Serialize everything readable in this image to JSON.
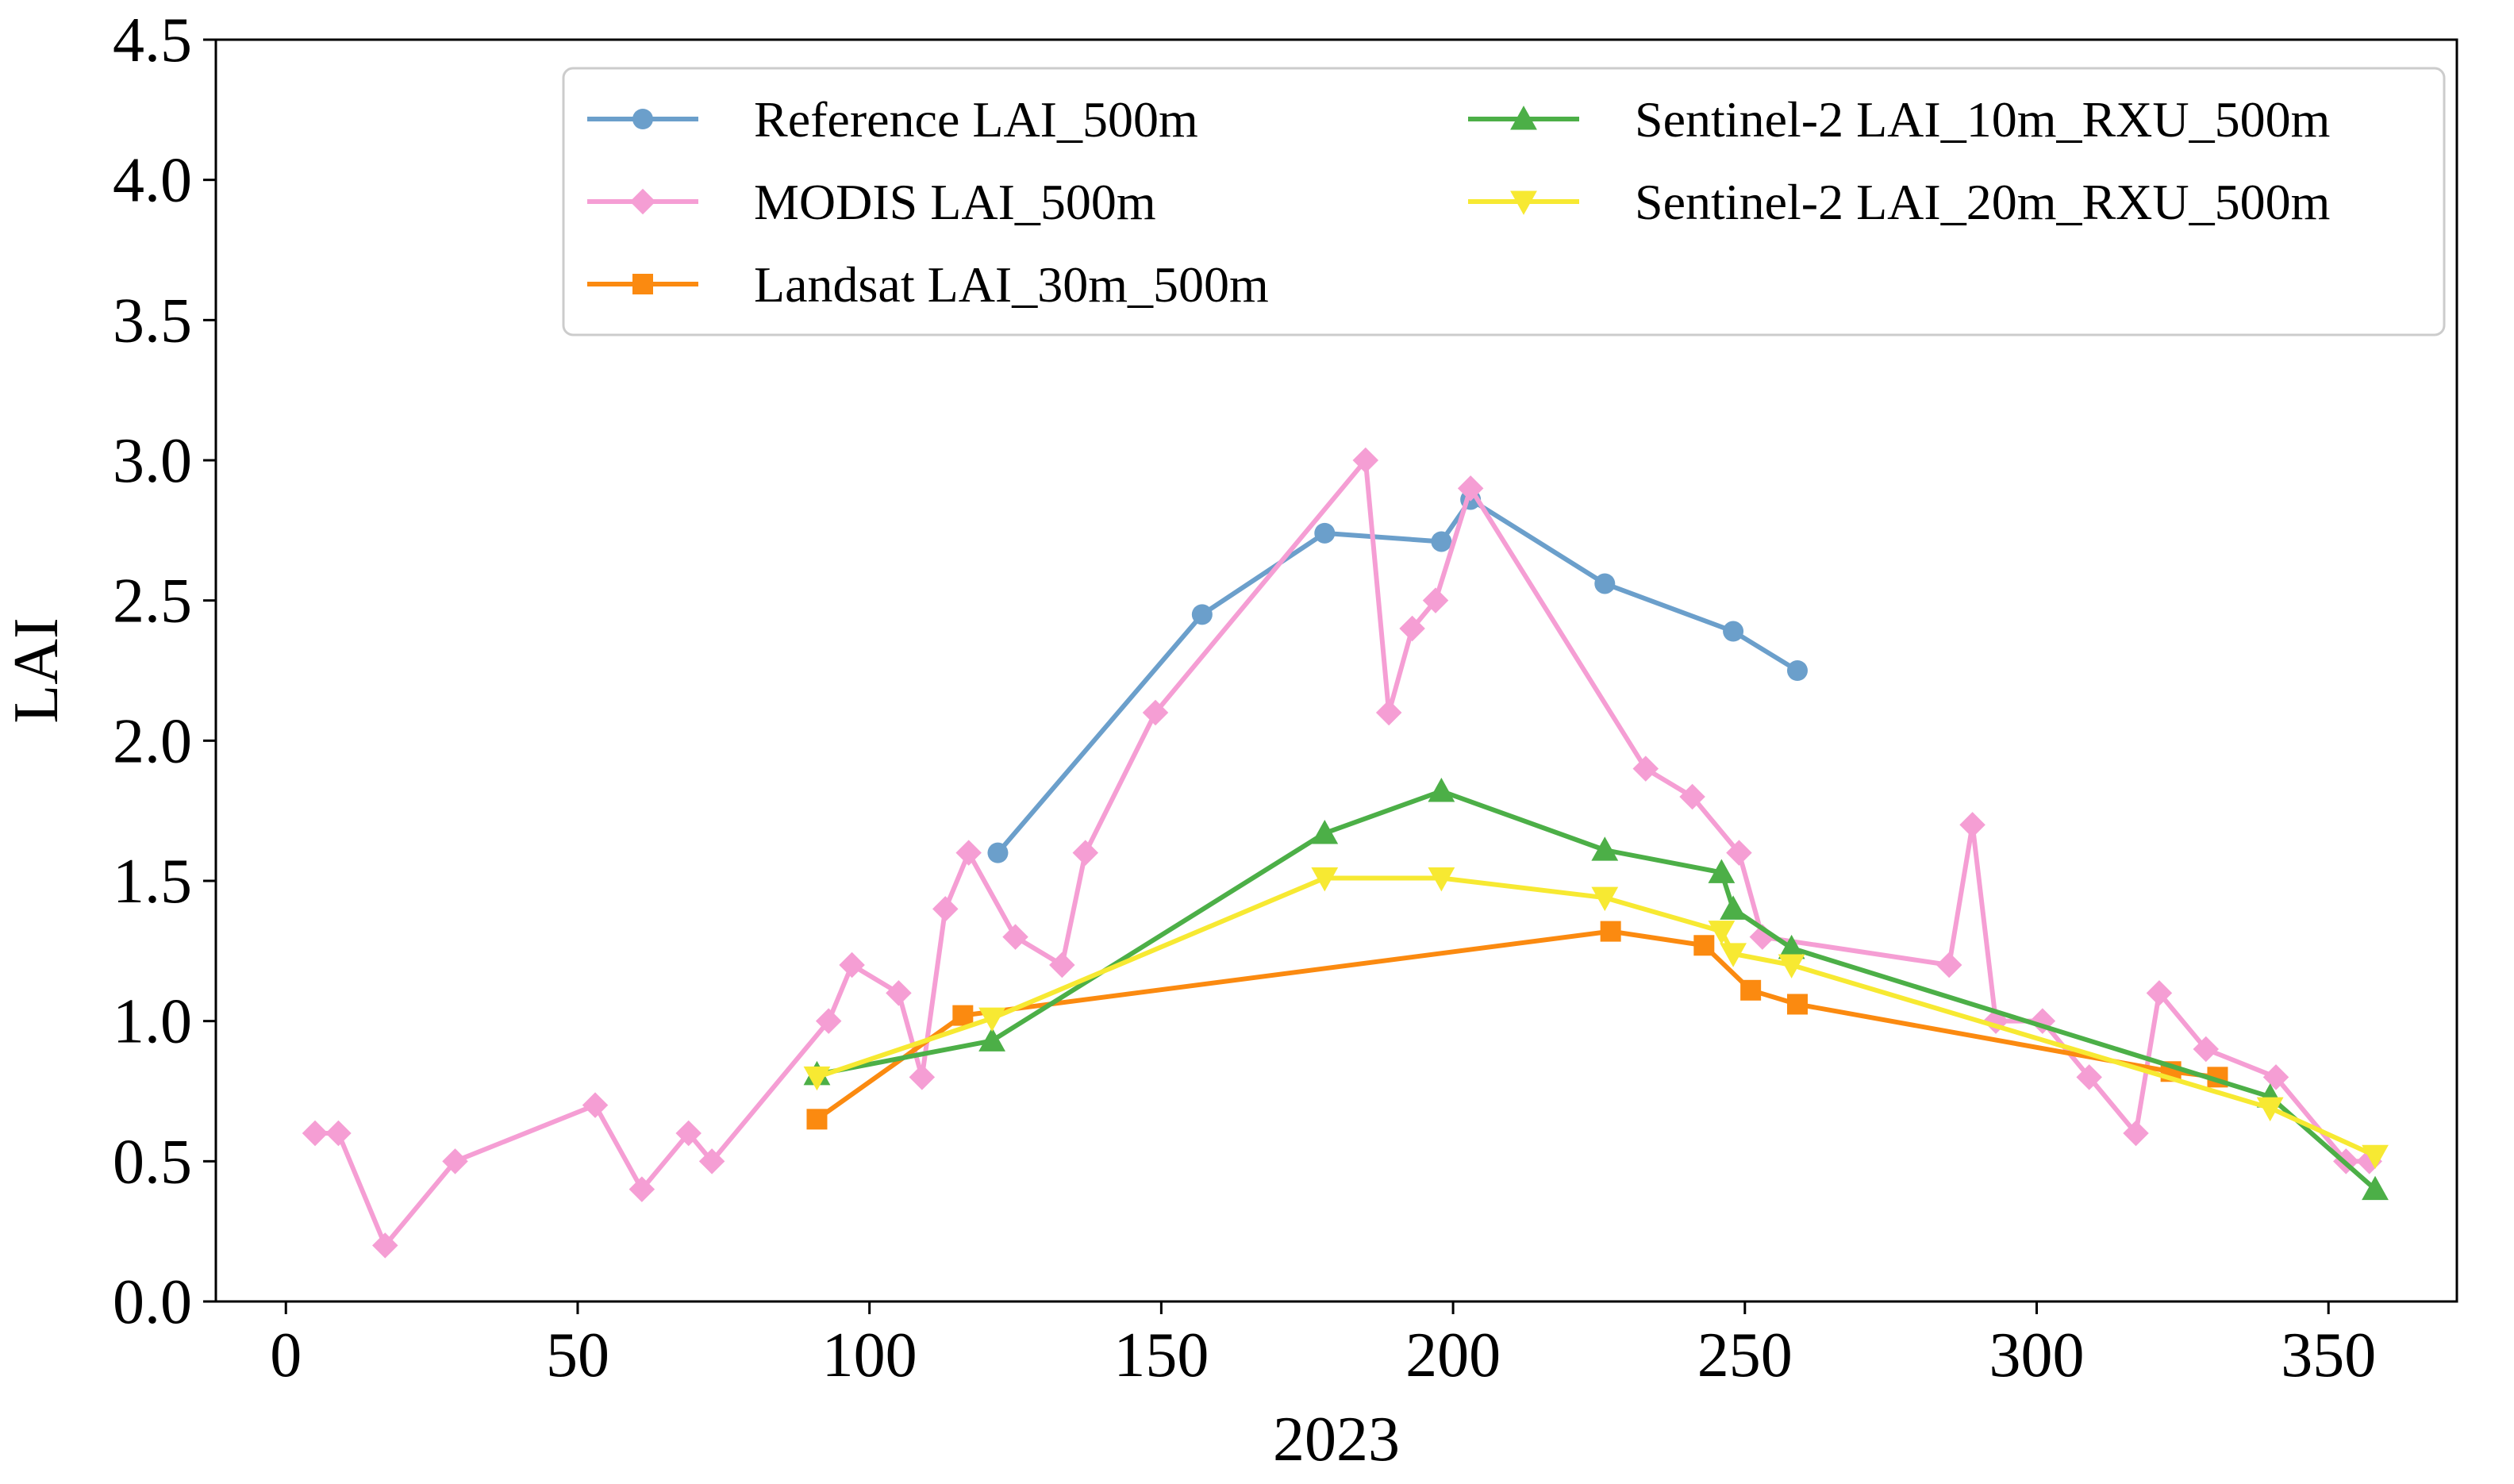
{
  "chart_data": {
    "type": "line",
    "title": "",
    "xlabel": "2023",
    "ylabel": "LAI",
    "xlim": [
      -12,
      372
    ],
    "ylim": [
      0.0,
      4.5
    ],
    "xticks": [
      "0",
      "50",
      "100",
      "150",
      "200",
      "250",
      "300",
      "350"
    ],
    "yticks": [
      "0.0",
      "0.5",
      "1.0",
      "1.5",
      "2.0",
      "2.5",
      "3.0",
      "3.5",
      "4.0",
      "4.5"
    ],
    "legend_position": "top-right",
    "series": [
      {
        "name": "Reference LAI_500m",
        "color": "#6b9fcb",
        "marker": "circle",
        "x": [
          122,
          157,
          178,
          198,
          203,
          226,
          248,
          259
        ],
        "y": [
          1.6,
          2.45,
          2.74,
          2.71,
          2.86,
          2.56,
          2.39,
          2.25
        ]
      },
      {
        "name": "MODIS LAI_500m",
        "color": "#f59ed4",
        "marker": "diamond",
        "x": [
          5,
          9,
          17,
          29,
          53,
          61,
          69,
          73,
          93,
          97,
          105,
          109,
          113,
          117,
          125,
          133,
          137,
          149,
          185,
          189,
          193,
          197,
          203,
          233,
          241,
          249,
          253,
          285,
          289,
          293,
          301,
          309,
          317,
          321,
          329,
          341,
          353,
          357
        ],
        "y": [
          0.6,
          0.6,
          0.2,
          0.5,
          0.7,
          0.4,
          0.6,
          0.5,
          1.0,
          1.2,
          1.1,
          0.8,
          1.4,
          1.6,
          1.3,
          1.2,
          1.6,
          2.1,
          3.0,
          2.1,
          2.4,
          2.5,
          2.9,
          1.9,
          1.8,
          1.6,
          1.3,
          1.2,
          1.7,
          1.0,
          1.0,
          0.8,
          0.6,
          1.1,
          0.9,
          0.8,
          0.5,
          0.5
        ]
      },
      {
        "name": "Landsat LAI_30m_500m",
        "color": "#fb8a10",
        "marker": "square",
        "x": [
          91,
          116,
          227,
          243,
          251,
          259,
          323,
          331
        ],
        "y": [
          0.65,
          1.02,
          1.32,
          1.27,
          1.11,
          1.06,
          0.82,
          0.8
        ]
      },
      {
        "name": "Sentinel-2 LAI_10m_RXU_500m",
        "color": "#4caf47",
        "marker": "triangle-up",
        "x": [
          91,
          121,
          178,
          198,
          226,
          246,
          248,
          258,
          340,
          358
        ],
        "y": [
          0.81,
          0.93,
          1.67,
          1.82,
          1.61,
          1.53,
          1.4,
          1.26,
          0.73,
          0.4
        ]
      },
      {
        "name": "Sentinel-2 LAI_20m_RXU_500m",
        "color": "#f7e932",
        "marker": "triangle-down",
        "x": [
          91,
          121,
          178,
          198,
          226,
          246,
          248,
          258,
          340,
          358
        ],
        "y": [
          0.8,
          1.01,
          1.51,
          1.51,
          1.44,
          1.32,
          1.24,
          1.2,
          0.69,
          0.52
        ]
      }
    ]
  }
}
